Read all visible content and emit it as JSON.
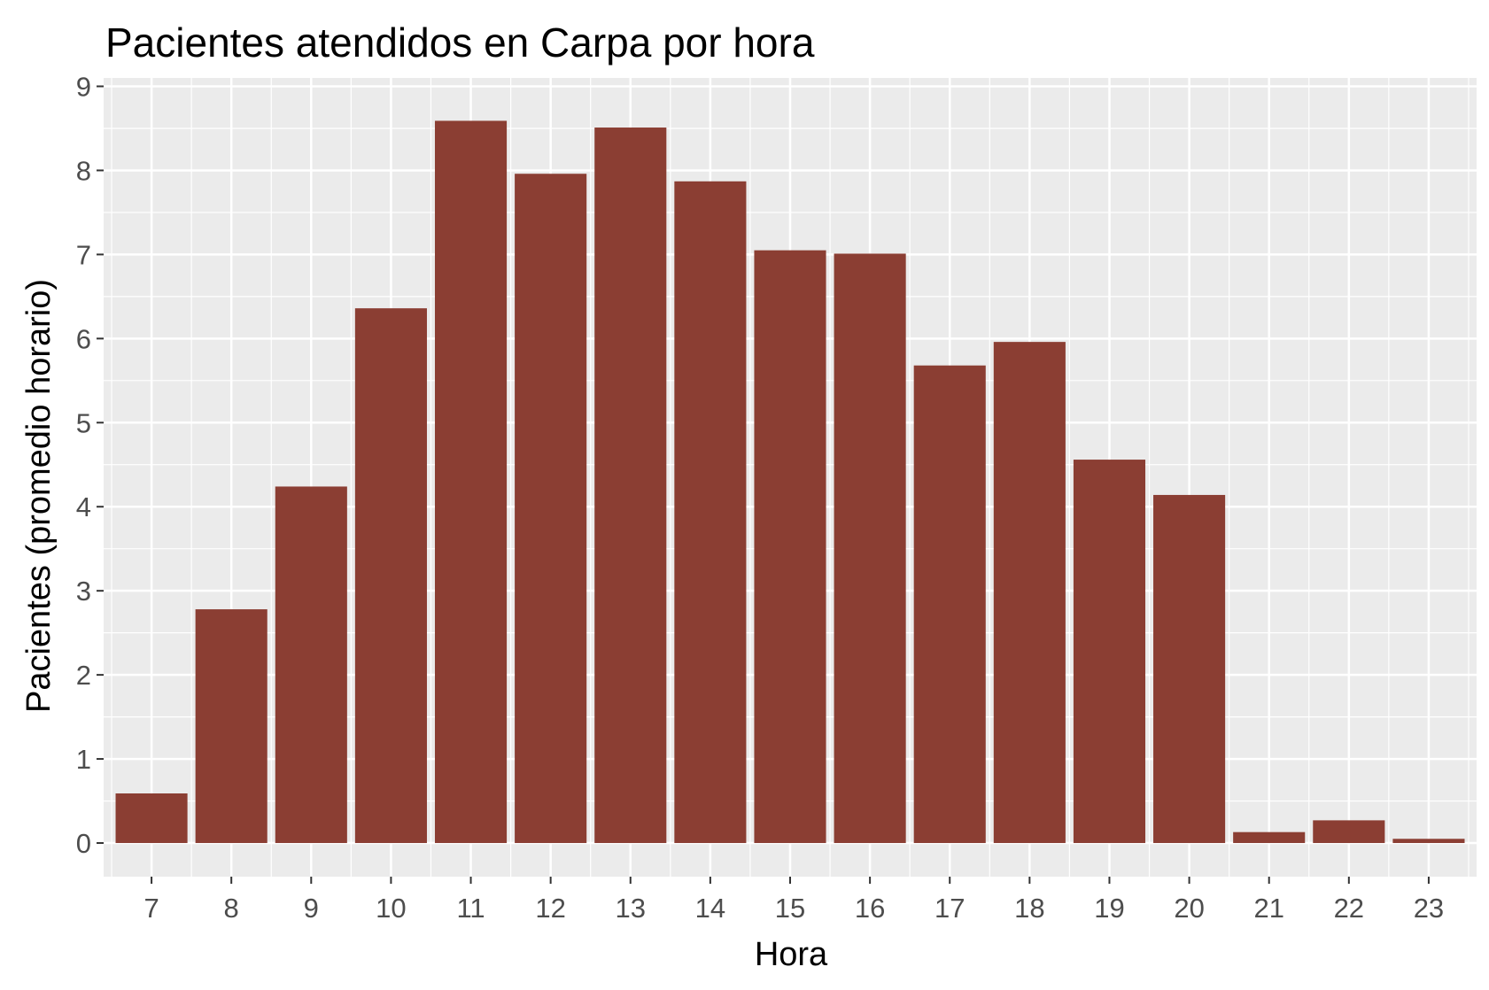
{
  "chart_data": {
    "type": "bar",
    "title": "Pacientes atendidos en Carpa por hora",
    "xlabel": "Hora",
    "ylabel": "Pacientes (promedio horario)",
    "categories": [
      "7",
      "8",
      "9",
      "10",
      "11",
      "12",
      "13",
      "14",
      "15",
      "16",
      "17",
      "18",
      "19",
      "20",
      "21",
      "22",
      "23"
    ],
    "values": [
      0.59,
      2.78,
      4.24,
      6.36,
      8.59,
      7.96,
      8.51,
      7.87,
      7.05,
      7.01,
      5.68,
      5.96,
      4.56,
      4.14,
      0.13,
      0.27,
      0.05
    ],
    "yticks": [
      "0",
      "1",
      "2",
      "3",
      "4",
      "5",
      "6",
      "7",
      "8",
      "9"
    ],
    "ylim": [
      -0.4,
      9.1
    ],
    "grid": true,
    "legend": "none",
    "colors": {
      "bar": "#8B3E33",
      "panel": "#EBEBEB",
      "grid": "#FFFFFF"
    }
  }
}
